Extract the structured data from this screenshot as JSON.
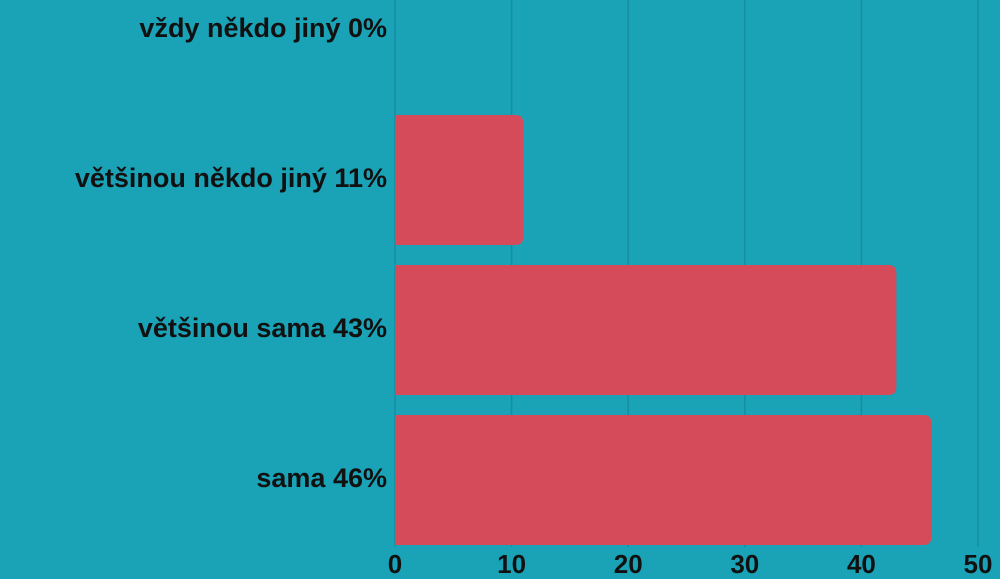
{
  "chart_data": {
    "type": "bar",
    "orientation": "horizontal",
    "categories": [
      "vždy někdo jiný 0%",
      "většinou někdo jiný 11%",
      "většinou sama 43%",
      "sama 46%"
    ],
    "values": [
      0,
      11,
      43,
      46
    ],
    "color": "#d64b5a",
    "xlim": [
      0,
      50
    ],
    "xticks": [
      0,
      10,
      20,
      30,
      40,
      50
    ],
    "grid": true
  }
}
